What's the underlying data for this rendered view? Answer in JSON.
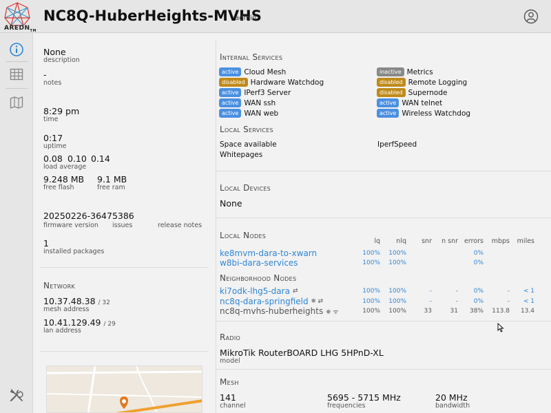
{
  "header": {
    "logo_text": "AREDN",
    "logo_suffix": "TM",
    "node_name": "NC8Q-HuberHeights-MVHS",
    "role": "admin",
    "user_icon": "user-circle-icon"
  },
  "sidebar": {
    "items": [
      {
        "icon": "info-icon",
        "active": true
      },
      {
        "icon": "table-icon",
        "active": false
      },
      {
        "icon": "map-icon",
        "active": false
      },
      {
        "icon": "tools-icon",
        "active": false
      }
    ]
  },
  "status": {
    "description_value": "None",
    "description_label": "description",
    "notes_value": "-",
    "notes_label": "notes",
    "time_value": "8:29 pm",
    "time_label": "time",
    "uptime_value": "0:17",
    "uptime_label": "uptime",
    "load_1": "0.08",
    "load_5": "0.10",
    "load_15": "0.14",
    "load_label": "load average",
    "flash_value": "9.248 MB",
    "flash_label": "free flash",
    "ram_value": "9.1 MB",
    "ram_label": "free ram",
    "firmware_value": "20250226-36475386",
    "firmware_label": "firmware version",
    "issues_label": "issues",
    "release_notes_label": "release notes",
    "packages_value": "1",
    "packages_label": "installed packages"
  },
  "network": {
    "title": "Network",
    "mesh_ip": "10.37.48.38",
    "mesh_mask": "/ 32",
    "mesh_label": "mesh address",
    "lan_ip": "10.41.129.49",
    "lan_mask": "/ 29",
    "lan_label": "lan address"
  },
  "internal_services": {
    "title": "Internal Services",
    "items": [
      {
        "status": "active",
        "name": "Cloud Mesh"
      },
      {
        "status": "disabled",
        "name": "Hardware Watchdog"
      },
      {
        "status": "active",
        "name": "IPerf3 Server"
      },
      {
        "status": "active",
        "name": "WAN ssh"
      },
      {
        "status": "active",
        "name": "WAN web"
      },
      {
        "status": "inactive",
        "name": "Metrics"
      },
      {
        "status": "disabled",
        "name": "Remote Logging"
      },
      {
        "status": "disabled",
        "name": "Supernode"
      },
      {
        "status": "active",
        "name": "WAN telnet"
      },
      {
        "status": "active",
        "name": "Wireless Watchdog"
      }
    ]
  },
  "local_services": {
    "title": "Local Services",
    "items": [
      "Space available",
      "Whitepages",
      "IperfSpeed"
    ]
  },
  "local_devices": {
    "title": "Local Devices",
    "value": "None"
  },
  "local_nodes": {
    "title": "Local Nodes",
    "columns": [
      "lq",
      "nlq",
      "snr",
      "n snr",
      "errors",
      "mbps",
      "miles"
    ],
    "rows": [
      {
        "name": "ke8mvm-dara-to-xwarn",
        "lq": "100%",
        "nlq": "100%",
        "snr": "",
        "nsnr": "",
        "errors": "0%",
        "mbps": "",
        "miles": ""
      },
      {
        "name": "w8bi-dara-services",
        "lq": "100%",
        "nlq": "100%",
        "snr": "",
        "nsnr": "",
        "errors": "0%",
        "mbps": "",
        "miles": ""
      }
    ]
  },
  "neighborhood_nodes": {
    "title": "Neighborhood Nodes",
    "rows": [
      {
        "name": "ki7odk-lhg5-dara",
        "icons": "⇄",
        "lq": "100%",
        "nlq": "100%",
        "snr": "-",
        "nsnr": "-",
        "errors": "0%",
        "mbps": "-",
        "miles": "< 1"
      },
      {
        "name": "nc8q-dara-springfield",
        "icons": "⛯ ⇄",
        "lq": "100%",
        "nlq": "100%",
        "snr": "-",
        "nsnr": "-",
        "errors": "0%",
        "mbps": "-",
        "miles": "< 1"
      },
      {
        "name": "nc8q-mvhs-huberheights",
        "icons": "⛯ ᯤ",
        "lq": "100%",
        "nlq": "100%",
        "snr": "33",
        "nsnr": "31",
        "errors": "38%",
        "mbps": "113.8",
        "miles": "13.4"
      }
    ]
  },
  "radio": {
    "title": "Radio",
    "model_value": "MikroTik RouterBOARD LHG 5HPnD-XL",
    "model_label": "model"
  },
  "mesh": {
    "title": "Mesh",
    "channel_value": "141",
    "channel_label": "channel",
    "freq_value": "5695 - 5715 MHz",
    "freq_label": "frequencies",
    "bw_value": "20 MHz",
    "bw_label": "bandwidth"
  },
  "colors": {
    "accent": "#2f86d6",
    "active": "#4a90e2",
    "inactive": "#888888",
    "disabled": "#c08a1a"
  }
}
